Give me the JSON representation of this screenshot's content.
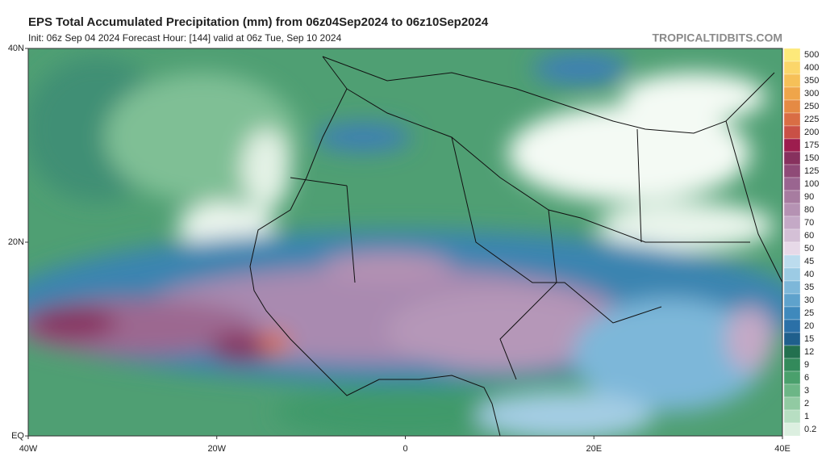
{
  "header": {
    "title": "EPS Total Accumulated Precipitation (mm) from 06z04Sep2024 to 06z10Sep2024",
    "subtitle": "Init: 06z Sep 04 2024   Forecast Hour: [144]   valid at 06z Tue, Sep 10 2024",
    "watermark": "TROPICALTIDBITS.COM"
  },
  "map": {
    "lat_labels": [
      "40N",
      "20N",
      "EQ"
    ],
    "lon_labels": [
      "40W",
      "20W",
      "0",
      "20E",
      "40E"
    ]
  },
  "colorbar": {
    "labels": [
      "500",
      "400",
      "350",
      "300",
      "250",
      "225",
      "200",
      "175",
      "150",
      "125",
      "100",
      "90",
      "80",
      "70",
      "60",
      "50",
      "45",
      "40",
      "35",
      "30",
      "25",
      "20",
      "15",
      "12",
      "9",
      "6",
      "3",
      "2",
      "1",
      "0.2"
    ],
    "colors": [
      "#fde97a",
      "#fbd66a",
      "#f6c058",
      "#efa54a",
      "#e58a44",
      "#d96d44",
      "#c95046",
      "#9d1d4e",
      "#87315e",
      "#8f4a77",
      "#9a6590",
      "#a77ca0",
      "#b592b3",
      "#c4a9c6",
      "#d4c0d6",
      "#e7d9e8",
      "#bcdcee",
      "#9ccbe4",
      "#7db7d9",
      "#5ea2cc",
      "#3f89bc",
      "#2b70a7",
      "#1f5f8c",
      "#23704f",
      "#338a5b",
      "#4aa06c",
      "#6cb686",
      "#91caa2",
      "#b7dec2",
      "#dcefe0"
    ]
  }
}
